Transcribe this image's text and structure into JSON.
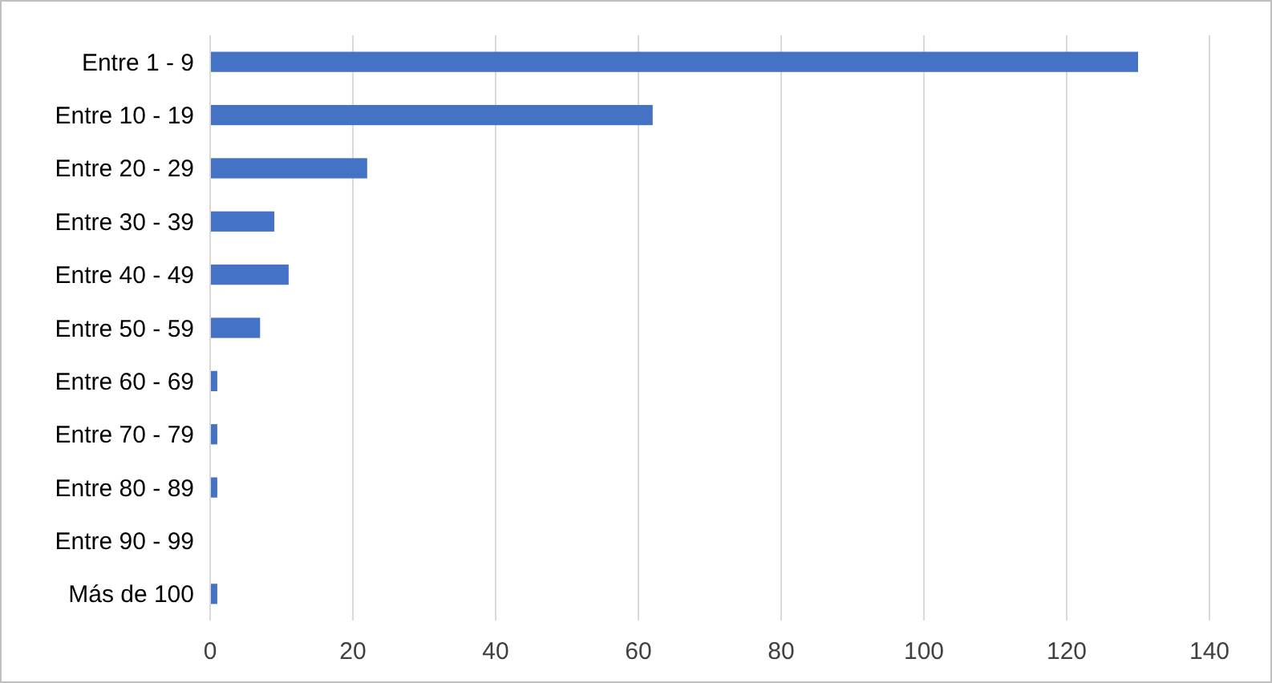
{
  "chart_data": {
    "type": "bar",
    "orientation": "horizontal",
    "categories": [
      "Entre 1 - 9",
      "Entre 10 - 19",
      "Entre 20 - 29",
      "Entre 30 - 39",
      "Entre 40 - 49",
      "Entre 50 - 59",
      "Entre 60 - 69",
      "Entre 70 - 79",
      "Entre 80 - 89",
      "Entre 90 - 99",
      "Más de 100"
    ],
    "values": [
      130,
      62,
      22,
      9,
      11,
      7,
      1,
      1,
      1,
      0,
      1
    ],
    "color": "#4472c4",
    "xlim": [
      0,
      140
    ],
    "xticks": [
      0,
      20,
      40,
      60,
      80,
      100,
      120,
      140
    ],
    "grid": "x"
  }
}
